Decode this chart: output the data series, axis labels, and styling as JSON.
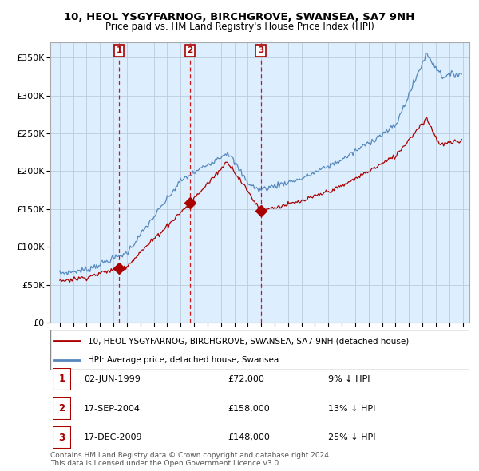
{
  "title": "10, HEOL YSGYFARNOG, BIRCHGROVE, SWANSEA, SA7 9NH",
  "subtitle": "Price paid vs. HM Land Registry's House Price Index (HPI)",
  "ylim": [
    0,
    370000
  ],
  "yticks": [
    0,
    50000,
    100000,
    150000,
    200000,
    250000,
    300000,
    350000
  ],
  "red_color": "#aa0000",
  "blue_color": "#5588bb",
  "blue_fill": "#ddeeff",
  "vline_color": "#cc0000",
  "sale_year_floats": [
    1999.42,
    2004.71,
    2009.96
  ],
  "sale_prices": [
    72000,
    158000,
    148000
  ],
  "sale_labels": [
    "1",
    "2",
    "3"
  ],
  "legend_entry1": "10, HEOL YSGYFARNOG, BIRCHGROVE, SWANSEA, SA7 9NH (detached house)",
  "legend_entry2": "HPI: Average price, detached house, Swansea",
  "table_entries": [
    {
      "num": "1",
      "date": "02-JUN-1999",
      "price": "£72,000",
      "hpi": "9% ↓ HPI"
    },
    {
      "num": "2",
      "date": "17-SEP-2004",
      "price": "£158,000",
      "hpi": "13% ↓ HPI"
    },
    {
      "num": "3",
      "date": "17-DEC-2009",
      "price": "£148,000",
      "hpi": "25% ↓ HPI"
    }
  ],
  "footnote": "Contains HM Land Registry data © Crown copyright and database right 2024.\nThis data is licensed under the Open Government Licence v3.0.",
  "background_color": "#ffffff",
  "chart_bg": "#ddeeff",
  "grid_color": "#bbccdd"
}
